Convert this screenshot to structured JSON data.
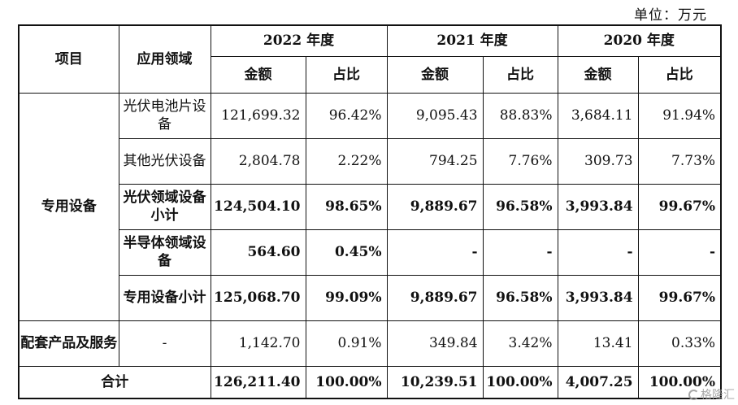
{
  "unit_note": "单位：万元",
  "header": {
    "item": "项目",
    "application": "应用领域",
    "years": [
      "2022 年度",
      "2021 年度",
      "2020 年度"
    ],
    "amount": "金额",
    "ratio": "占比"
  },
  "groups": {
    "dedicated": "专用设备",
    "supporting": "配套产品及服务"
  },
  "rows": [
    {
      "label": "光伏电池片设备",
      "values": [
        "121,699.32",
        "96.42%",
        "9,095.43",
        "88.83%",
        "3,684.11",
        "91.94%"
      ]
    },
    {
      "label": "其他光伏设备",
      "values": [
        "2,804.78",
        "2.22%",
        "794.25",
        "7.76%",
        "309.73",
        "7.73%"
      ]
    },
    {
      "label": "光伏领域设备小计",
      "values": [
        "124,504.10",
        "98.65%",
        "9,889.67",
        "96.58%",
        "3,993.84",
        "99.67%"
      ]
    },
    {
      "label": "半导体领域设备",
      "values": [
        "564.60",
        "0.45%",
        "-",
        "-",
        "-",
        "-"
      ]
    },
    {
      "label": "专用设备小计",
      "values": [
        "125,068.70",
        "99.09%",
        "9,889.67",
        "96.58%",
        "3,993.84",
        "99.67%"
      ]
    },
    {
      "label": "-",
      "values": [
        "1,142.70",
        "0.91%",
        "349.84",
        "3.42%",
        "13.41",
        "0.33%"
      ]
    }
  ],
  "total": {
    "label": "合计",
    "values": [
      "126,211.40",
      "100.00%",
      "10,239.51",
      "100.00%",
      "4,007.25",
      "100.00%"
    ]
  },
  "watermark": "格隆汇"
}
